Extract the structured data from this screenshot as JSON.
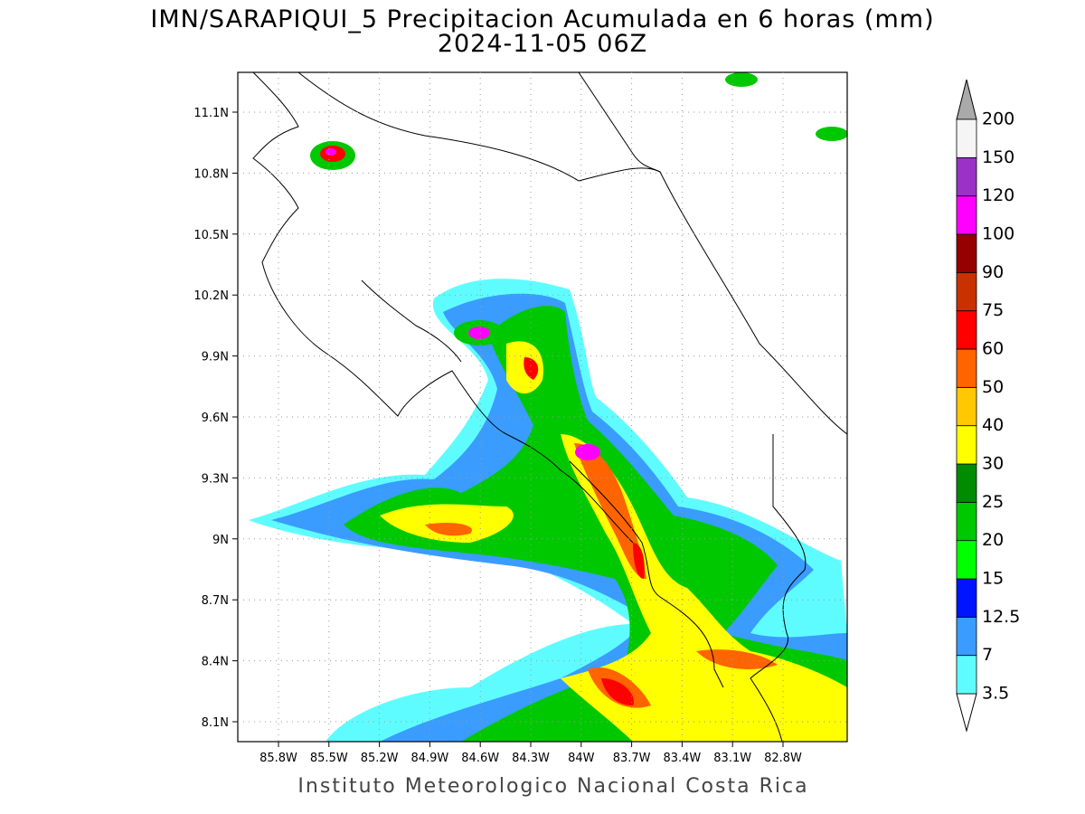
{
  "title": "IMN/SARAPIQUI_5 Precipitacion Acumulada en 6 horas (mm)",
  "subtitle": "2024-11-05 06Z",
  "map": {
    "lat_ticks": [
      "11.1N",
      "10.8N",
      "10.5N",
      "10.2N",
      "9.9N",
      "9.6N",
      "9.3N",
      "9N",
      "8.7N",
      "8.4N",
      "8.1N"
    ],
    "lon_ticks": [
      "85.8W",
      "85.5W",
      "85.2W",
      "84.9W",
      "84.6W",
      "84.3W",
      "84W",
      "83.7W",
      "83.4W",
      "83.1W",
      "82.8W"
    ]
  },
  "legend": {
    "levels": [
      3.5,
      7,
      12.5,
      15,
      20,
      25,
      30,
      40,
      50,
      60,
      75,
      90,
      100,
      120,
      150,
      200
    ],
    "colors": [
      "#ffffff",
      "#5ffcff",
      "#3a9cff",
      "#0014ff",
      "#00ff00",
      "#00c800",
      "#008c00",
      "#ffff00",
      "#ffc800",
      "#ff6400",
      "#ff0000",
      "#c83200",
      "#960000",
      "#ff00ff",
      "#9b32c8",
      "#f5f5f5",
      "#aaaaaa"
    ]
  },
  "footer": "Instituto Meteorologico Nacional Costa Rica"
}
